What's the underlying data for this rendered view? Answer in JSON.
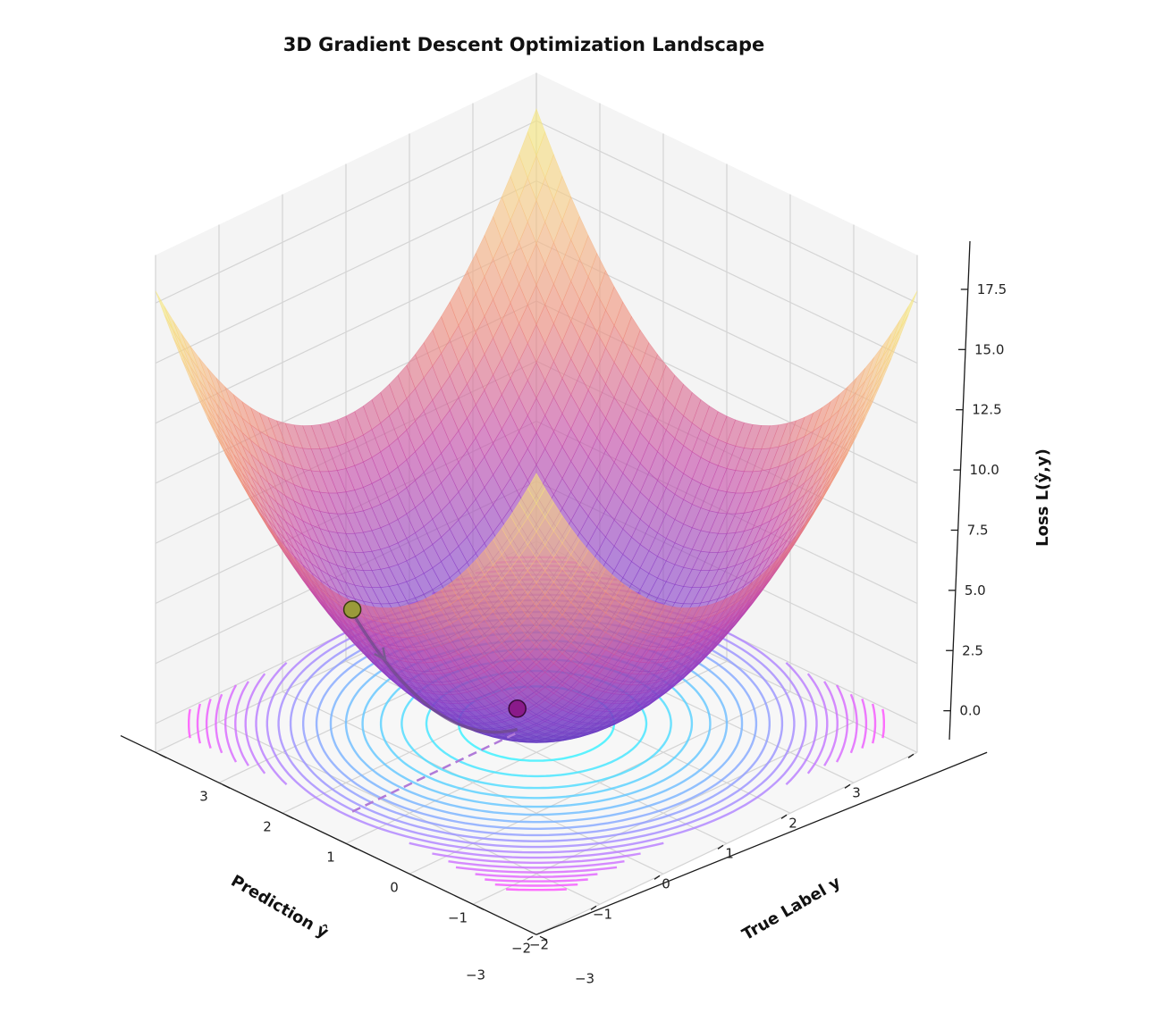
{
  "chart_data": {
    "type": "surface3d",
    "title": "3D Gradient Descent Optimization Landscape",
    "xlabel": "Prediction ŷ",
    "ylabel": "True Label y",
    "zlabel": "Loss L(ŷ,y)",
    "function": "(ŷ - 0)^2 + (y - 0)^2 style bowl",
    "xlim": [
      -3,
      3
    ],
    "ylim": [
      -3,
      3
    ],
    "zlim": [
      -1.2,
      19.5
    ],
    "x_ticks": [
      3,
      2,
      1,
      0,
      -1,
      -2,
      -3
    ],
    "x_tick_labels": [
      "3",
      "2",
      "1",
      "0",
      "−1",
      "−2",
      "−3"
    ],
    "y_ticks": [
      -3,
      -2,
      -1,
      0,
      1,
      2,
      3
    ],
    "y_tick_labels": [
      "−3",
      "−2",
      "−1",
      "0",
      "1",
      "2",
      "3"
    ],
    "z_ticks": [
      0,
      2.5,
      5,
      7.5,
      10,
      12.5,
      15,
      17.5
    ],
    "z_tick_labels": [
      "0.0",
      "2.5",
      "5.0",
      "7.5",
      "10.0",
      "12.5",
      "15.0",
      "17.5"
    ],
    "surface_colormap": [
      "#5a3fc0",
      "#8a3fc8",
      "#c64aa8",
      "#ee8a7a",
      "#f7c485",
      "#f6ef7a"
    ],
    "contour_colormap": [
      "#33f0ff",
      "#9f8cff",
      "#ff4cff"
    ],
    "contour_levels": [
      0.75,
      1.5,
      2.25,
      3.0,
      3.75,
      4.5,
      5.25,
      6.0,
      6.75,
      7.5,
      8.25,
      9.0,
      9.75,
      10.5,
      11.25,
      12.0,
      12.75,
      13.5,
      14.25,
      15.0
    ],
    "descent_path": {
      "start": {
        "x": 2.9,
        "y": 0,
        "z": 8.41,
        "color": "#9a9a3a"
      },
      "end": {
        "x": 0.3,
        "y": 0,
        "z": 1.0,
        "color": "#8a1a8a"
      }
    },
    "grid": true,
    "view": {
      "elev": 30,
      "azim": 45
    }
  }
}
